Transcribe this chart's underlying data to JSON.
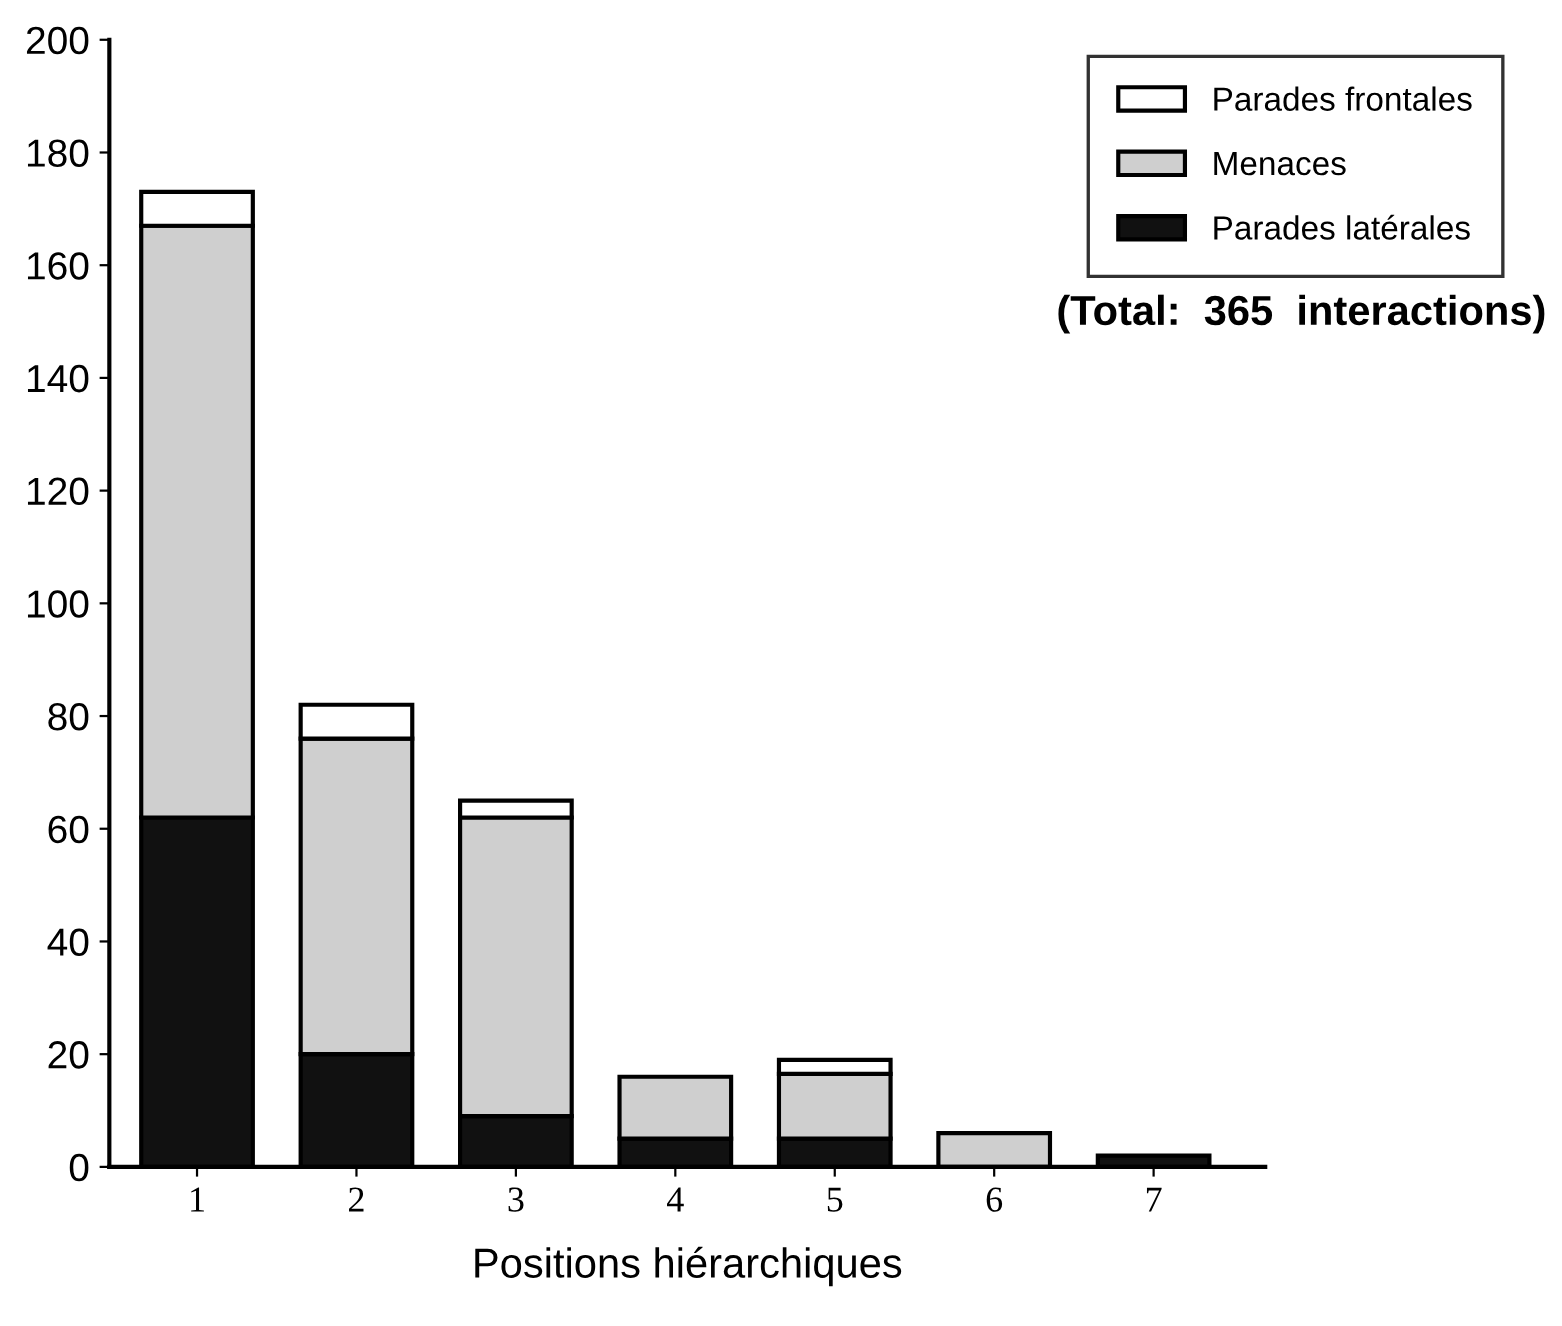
{
  "chart_data": {
    "type": "bar",
    "stacked": true,
    "xlabel": "Positions hiérarchiques",
    "categories": [
      "1",
      "2",
      "3",
      "4",
      "5",
      "6",
      "7"
    ],
    "series": [
      {
        "name": "Parades latérales",
        "color": "#111111",
        "values": [
          62,
          20,
          9,
          5,
          5,
          null,
          2
        ]
      },
      {
        "name": "Menaces",
        "color": "#cfcfcf",
        "values": [
          105,
          56,
          53,
          11,
          11.5,
          6,
          null
        ]
      },
      {
        "name": "Parades frontales",
        "color": "#ffffff",
        "values": [
          6,
          6,
          3,
          null,
          2.5,
          null,
          null
        ]
      }
    ],
    "ylim": [
      0,
      200
    ],
    "yticks": [
      0,
      20,
      40,
      60,
      80,
      100,
      120,
      140,
      160,
      180,
      200
    ],
    "grid": false,
    "legend": "top right",
    "annotations": [
      "(Total:  365  interactions)"
    ]
  }
}
